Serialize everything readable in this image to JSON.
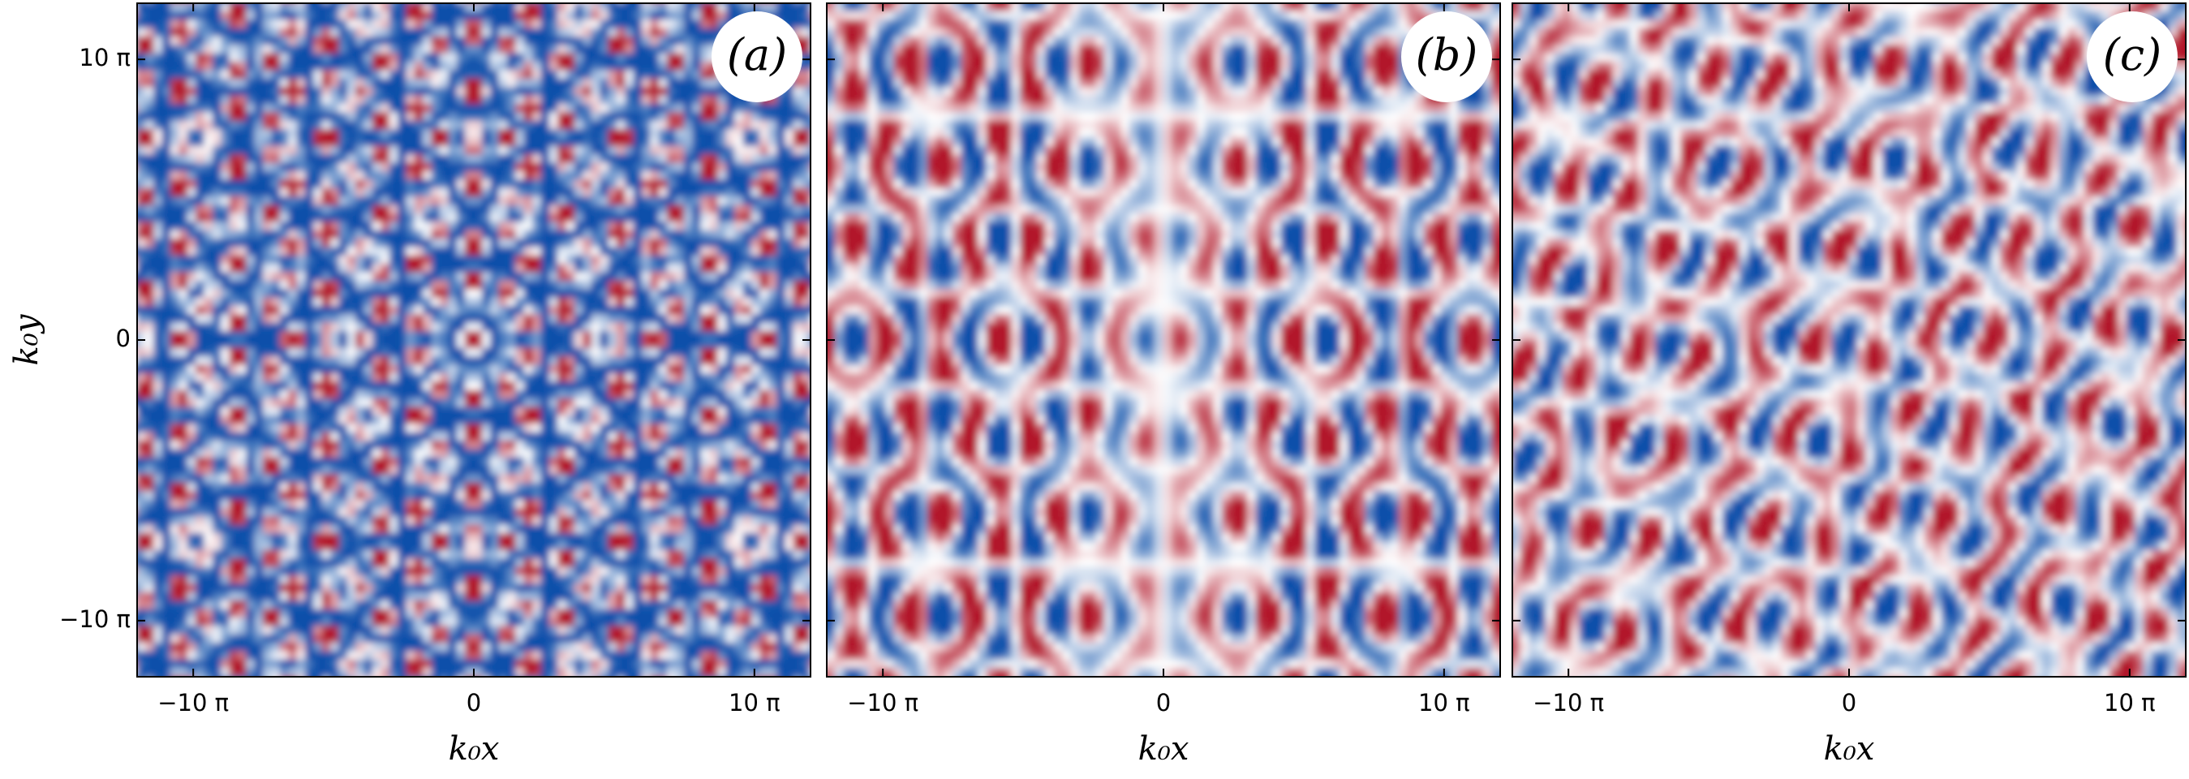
{
  "chart_data": [
    {
      "type": "heatmap",
      "panel_label": "(a)",
      "x_label": "k₀x",
      "y_label": "k₀y",
      "xlim": [
        -12,
        12
      ],
      "xticks": [
        {
          "value": -10,
          "label": "−10 π"
        },
        0,
        {
          "value": 10,
          "label": "10 π"
        }
      ],
      "ylim": [
        -12,
        12
      ],
      "yticks": [
        {
          "value": -10,
          "label": "−10 π"
        },
        0,
        {
          "value": 10,
          "label": "10 π"
        }
      ]
    },
    {
      "type": "heatmap",
      "panel_label": "(b)",
      "x_label": "k₀x",
      "xlim": [
        -12,
        12
      ],
      "xticks": [
        {
          "value": -10,
          "label": "−10 π"
        },
        0,
        {
          "value": 10,
          "label": "10 π"
        }
      ],
      "ylim": [
        -12,
        12
      ]
    },
    {
      "type": "heatmap",
      "panel_label": "(c)",
      "x_label": "k₀x",
      "xlim": [
        -12,
        12
      ],
      "xticks": [
        {
          "value": -10,
          "label": "−10 π"
        },
        0,
        {
          "value": 10,
          "label": "10 π"
        }
      ],
      "ylim": [
        -12,
        12
      ]
    }
  ]
}
